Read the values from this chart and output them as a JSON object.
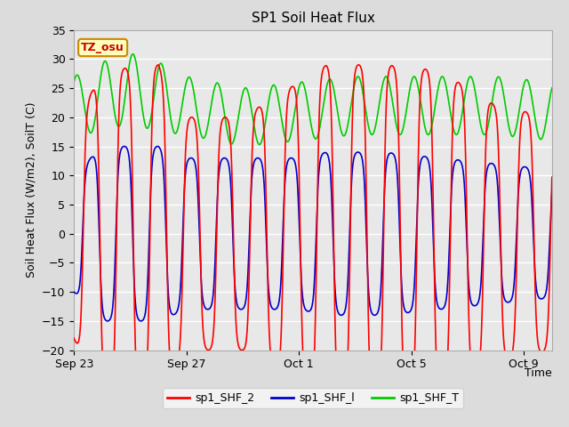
{
  "title": "SP1 Soil Heat Flux",
  "xlabel": "Time",
  "ylabel": "Soil Heat Flux (W/m2), SoilT (C)",
  "ylim": [
    -20,
    35
  ],
  "yticks": [
    -20,
    -15,
    -10,
    -5,
    0,
    5,
    10,
    15,
    20,
    25,
    30,
    35
  ],
  "xtick_labels": [
    "Sep 23",
    "Sep 27",
    "Oct 1",
    "Oct 5",
    "Oct 9"
  ],
  "xtick_pos": [
    0,
    96,
    192,
    288,
    384
  ],
  "tz_label": "TZ_osu",
  "legend": [
    "sp1_SHF_2",
    "sp1_SHF_l",
    "sp1_SHF_T"
  ],
  "colors": {
    "sp1_SHF_2": "#ff0000",
    "sp1_SHF_l": "#0000cc",
    "sp1_SHF_T": "#00cc00"
  },
  "bg_color": "#dcdcdc",
  "plot_bg": "#e8e8e8",
  "grid_color": "#ffffff",
  "total_hours": 408,
  "period_hours": 28.5
}
